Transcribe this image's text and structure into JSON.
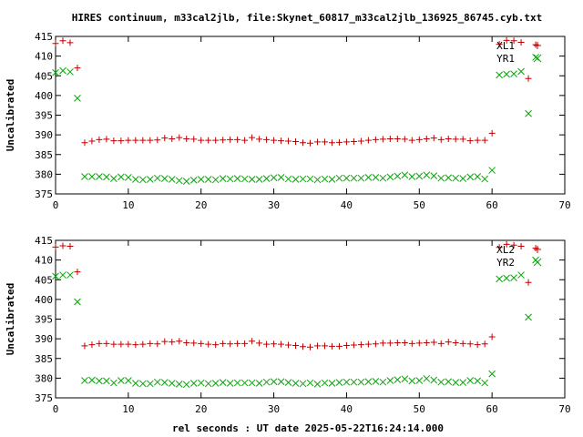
{
  "title": "HIRES continuum, m33cal2jlb, file:Skynet_60817_m33cal2jlb_136925_86745.cyb.txt",
  "xlabel": "rel seconds : UT date 2025-05-22T16:24:14.000",
  "colors": {
    "red": "#c00000",
    "green": "#00aa00",
    "axis": "#000000"
  },
  "chart_data": [
    {
      "type": "scatter",
      "ylabel": "Uncalibrated",
      "xlim": [
        0,
        70
      ],
      "ylim": [
        375,
        415
      ],
      "xticks": [
        "0",
        "10",
        "20",
        "30",
        "40",
        "50",
        "60",
        "70"
      ],
      "yticks": [
        "375",
        "380",
        "385",
        "390",
        "395",
        "400",
        "405",
        "410",
        "415"
      ],
      "legend_position": "top-right",
      "series": [
        {
          "name": "XL1",
          "marker": "plus",
          "x": [
            0,
            1,
            2,
            3,
            4,
            5,
            6,
            7,
            8,
            9,
            10,
            11,
            12,
            13,
            14,
            15,
            16,
            17,
            18,
            19,
            20,
            21,
            22,
            23,
            24,
            25,
            26,
            27,
            28,
            29,
            30,
            31,
            32,
            33,
            34,
            35,
            36,
            37,
            38,
            39,
            40,
            41,
            42,
            43,
            44,
            45,
            46,
            47,
            48,
            49,
            50,
            51,
            52,
            53,
            54,
            55,
            56,
            57,
            58,
            59,
            60,
            61,
            62,
            63,
            64,
            65,
            66
          ],
          "y": [
            413.2,
            413.9,
            413.4,
            407.0,
            388.0,
            388.4,
            388.8,
            388.9,
            388.5,
            388.5,
            388.6,
            388.6,
            388.6,
            388.6,
            388.7,
            389.2,
            389.0,
            389.3,
            389.0,
            388.9,
            388.6,
            388.6,
            388.6,
            388.7,
            388.8,
            388.8,
            388.6,
            389.3,
            388.9,
            388.8,
            388.6,
            388.5,
            388.4,
            388.3,
            388.0,
            387.9,
            388.2,
            388.2,
            388.0,
            388.1,
            388.2,
            388.3,
            388.4,
            388.6,
            388.8,
            388.9,
            389.0,
            389.0,
            388.9,
            388.6,
            388.8,
            389.0,
            389.2,
            388.8,
            389.0,
            388.9,
            388.9,
            388.5,
            388.6,
            388.6,
            390.4,
            413.0,
            414.0,
            413.9,
            413.5,
            404.3,
            412.9
          ]
        },
        {
          "name": "YR1",
          "marker": "cross",
          "x": [
            0,
            1,
            2,
            3,
            4,
            5,
            6,
            7,
            8,
            9,
            10,
            11,
            12,
            13,
            14,
            15,
            16,
            17,
            18,
            19,
            20,
            21,
            22,
            23,
            24,
            25,
            26,
            27,
            28,
            29,
            30,
            31,
            32,
            33,
            34,
            35,
            36,
            37,
            38,
            39,
            40,
            41,
            42,
            43,
            44,
            45,
            46,
            47,
            48,
            49,
            50,
            51,
            52,
            53,
            54,
            55,
            56,
            57,
            58,
            59,
            60,
            61,
            62,
            63,
            64,
            65,
            66
          ],
          "y": [
            405.8,
            406.3,
            406.0,
            399.3,
            379.4,
            379.4,
            379.4,
            379.3,
            378.9,
            379.3,
            379.2,
            378.7,
            378.6,
            378.7,
            379.0,
            378.9,
            378.7,
            378.4,
            378.2,
            378.5,
            378.7,
            378.7,
            378.6,
            378.9,
            378.8,
            378.9,
            378.8,
            378.7,
            378.7,
            378.9,
            379.1,
            379.2,
            378.8,
            378.7,
            378.8,
            378.8,
            378.6,
            378.8,
            378.7,
            379.0,
            379.0,
            379.0,
            379.0,
            379.2,
            379.2,
            379.0,
            379.3,
            379.5,
            379.8,
            379.4,
            379.5,
            379.8,
            379.6,
            379.0,
            379.1,
            379.0,
            378.9,
            379.3,
            379.4,
            378.8,
            381.0,
            405.2,
            405.4,
            405.5,
            406.1,
            395.4,
            409.7
          ]
        }
      ]
    },
    {
      "type": "scatter",
      "ylabel": "Uncalibrated",
      "xlim": [
        0,
        70
      ],
      "ylim": [
        375,
        415
      ],
      "xticks": [
        "0",
        "10",
        "20",
        "30",
        "40",
        "50",
        "60",
        "70"
      ],
      "yticks": [
        "375",
        "380",
        "385",
        "390",
        "395",
        "400",
        "405",
        "410",
        "415"
      ],
      "legend_position": "top-right",
      "series": [
        {
          "name": "XL2",
          "marker": "plus",
          "x": [
            0,
            1,
            2,
            3,
            4,
            5,
            6,
            7,
            8,
            9,
            10,
            11,
            12,
            13,
            14,
            15,
            16,
            17,
            18,
            19,
            20,
            21,
            22,
            23,
            24,
            25,
            26,
            27,
            28,
            29,
            30,
            31,
            32,
            33,
            34,
            35,
            36,
            37,
            38,
            39,
            40,
            41,
            42,
            43,
            44,
            45,
            46,
            47,
            48,
            49,
            50,
            51,
            52,
            53,
            54,
            55,
            56,
            57,
            58,
            59,
            60,
            61,
            62,
            63,
            64,
            65,
            66
          ],
          "y": [
            413.3,
            413.6,
            413.5,
            407.0,
            388.2,
            388.5,
            388.8,
            388.8,
            388.6,
            388.6,
            388.6,
            388.5,
            388.6,
            388.8,
            388.7,
            389.3,
            389.2,
            389.4,
            389.0,
            388.9,
            388.8,
            388.6,
            388.5,
            388.8,
            388.7,
            388.8,
            388.8,
            389.4,
            388.9,
            388.6,
            388.7,
            388.6,
            388.4,
            388.3,
            388.0,
            387.9,
            388.2,
            388.2,
            388.1,
            388.1,
            388.3,
            388.4,
            388.5,
            388.6,
            388.7,
            388.9,
            388.9,
            389.0,
            389.0,
            388.8,
            388.9,
            389.0,
            389.1,
            388.8,
            389.2,
            389.0,
            388.8,
            388.7,
            388.5,
            388.7,
            390.5,
            413.2,
            414.0,
            413.8,
            413.5,
            404.3,
            413.0
          ]
        },
        {
          "name": "YR2",
          "marker": "cross",
          "x": [
            0,
            1,
            2,
            3,
            4,
            5,
            6,
            7,
            8,
            9,
            10,
            11,
            12,
            13,
            14,
            15,
            16,
            17,
            18,
            19,
            20,
            21,
            22,
            23,
            24,
            25,
            26,
            27,
            28,
            29,
            30,
            31,
            32,
            33,
            34,
            35,
            36,
            37,
            38,
            39,
            40,
            41,
            42,
            43,
            44,
            45,
            46,
            47,
            48,
            49,
            50,
            51,
            52,
            53,
            54,
            55,
            56,
            57,
            58,
            59,
            60,
            61,
            62,
            63,
            64,
            65,
            66
          ],
          "y": [
            405.9,
            406.2,
            406.2,
            399.4,
            379.4,
            379.5,
            379.3,
            379.3,
            378.8,
            379.4,
            379.4,
            378.7,
            378.6,
            378.6,
            379.0,
            378.9,
            378.7,
            378.5,
            378.4,
            378.7,
            378.8,
            378.6,
            378.7,
            378.9,
            378.7,
            378.8,
            378.8,
            378.8,
            378.7,
            379.0,
            379.1,
            379.1,
            378.9,
            378.7,
            378.6,
            378.8,
            378.5,
            378.8,
            378.7,
            378.9,
            379.0,
            379.0,
            379.0,
            379.1,
            379.2,
            379.0,
            379.4,
            379.6,
            379.8,
            379.3,
            379.4,
            379.9,
            379.5,
            379.0,
            379.1,
            378.9,
            378.9,
            379.4,
            379.3,
            378.8,
            381.1,
            405.2,
            405.4,
            405.5,
            406.2,
            395.5,
            410.0
          ]
        }
      ]
    }
  ]
}
